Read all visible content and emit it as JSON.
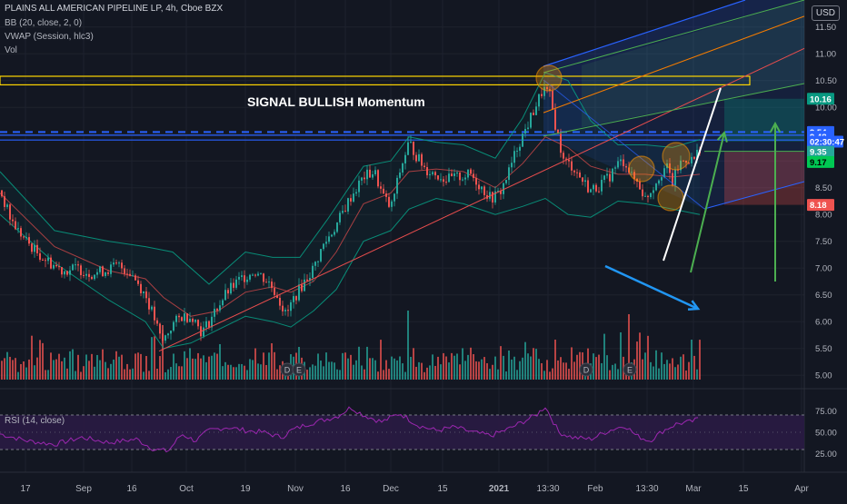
{
  "legend": {
    "title": "PLAINS ALL AMERICAN PIPELINE LP, 4h, Cboe BZX",
    "bb": "BB (20, close, 2, 0)",
    "vwap": "VWAP (Session, hlc3)",
    "vol": "Vol",
    "rsi": "RSI (14, close)"
  },
  "currency_button": "USD",
  "annotation_text": "SIGNAL BULLISH Momentum",
  "colors": {
    "background": "#131722",
    "up": "#26a69a",
    "down": "#ef5350",
    "volume_up": "#26a69a",
    "volume_down": "#ef5350",
    "bb_band": "#089981",
    "bb_basis": "#e84d4d",
    "rsi_line": "#9c27b0",
    "rsi_fill": "#2a1b44",
    "dashed_line": "#2962ff",
    "pitchfork_blue": "#2962ff",
    "pitchfork_green": "#4caf50",
    "pitchfork_orange": "#f57c00",
    "yellow_box": "#ffd600",
    "circle_fill": "#ff9800"
  },
  "price_axis": {
    "ticks": [
      "11.50",
      "11.00",
      "10.50",
      "10.00",
      "9.50",
      "9.00",
      "8.50",
      "8.00",
      "7.50",
      "7.00",
      "6.50",
      "6.00",
      "5.50",
      "5.00"
    ],
    "tags": [
      {
        "text": "10.16",
        "bg": "#089981",
        "color": "#ffffff",
        "value": 10.16
      },
      {
        "text": "9.54",
        "bg": "#2962ff",
        "color": "#ffffff",
        "value": 9.54
      },
      {
        "text": "9.48",
        "bg": "#2962ff",
        "color": "#ffffff",
        "value": 9.45
      },
      {
        "text": "02:30:47",
        "bg": "#2962ff",
        "color": "#ffffff",
        "value": 9.36
      },
      {
        "text": "9.35",
        "bg": "#26a69a",
        "color": "#ffffff",
        "value": 9.17
      },
      {
        "text": "9.17",
        "bg": "#00c853",
        "color": "#000000",
        "value": 8.98
      },
      {
        "text": "8.18",
        "bg": "#ef5350",
        "color": "#ffffff",
        "value": 8.18
      }
    ]
  },
  "rsi_axis": {
    "ticks": [
      "75.00",
      "50.00",
      "25.00"
    ]
  },
  "time_axis": {
    "labels": [
      "17",
      "Sep",
      "16",
      "Oct",
      "19",
      "Nov",
      "16",
      "Dec",
      "15",
      "2021",
      "13:30",
      "Feb",
      "13:30",
      "Mar",
      "15",
      "Apr"
    ]
  },
  "earnings_markers": [
    "D",
    "E",
    "D",
    "E"
  ],
  "chart_data": {
    "type": "candlestick",
    "title": "PLAINS ALL AMERICAN PIPELINE LP, 4h, Cboe BZX",
    "ylim": [
      4.8,
      11.8
    ],
    "rsi_ylim": [
      12,
      88
    ],
    "price_path": [
      [
        0,
        8.45
      ],
      [
        12,
        7.9
      ],
      [
        24,
        7.6
      ],
      [
        40,
        7.3
      ],
      [
        55,
        7.1
      ],
      [
        70,
        6.95
      ],
      [
        85,
        7.0
      ],
      [
        100,
        6.9
      ],
      [
        115,
        6.95
      ],
      [
        130,
        7.05
      ],
      [
        145,
        6.9
      ],
      [
        160,
        6.5
      ],
      [
        170,
        6.05
      ],
      [
        178,
        5.6
      ],
      [
        190,
        5.95
      ],
      [
        200,
        6.1
      ],
      [
        212,
        6.1
      ],
      [
        222,
        5.8
      ],
      [
        230,
        6.0
      ],
      [
        240,
        6.3
      ],
      [
        250,
        6.55
      ],
      [
        265,
        6.8
      ],
      [
        280,
        6.95
      ],
      [
        295,
        6.75
      ],
      [
        305,
        6.5
      ],
      [
        315,
        6.1
      ],
      [
        322,
        6.4
      ],
      [
        335,
        6.75
      ],
      [
        345,
        7.0
      ],
      [
        355,
        7.4
      ],
      [
        370,
        7.8
      ],
      [
        385,
        8.3
      ],
      [
        400,
        8.7
      ],
      [
        412,
        8.8
      ],
      [
        420,
        8.4
      ],
      [
        430,
        8.1
      ],
      [
        440,
        8.8
      ],
      [
        450,
        9.35
      ],
      [
        458,
        9.1
      ],
      [
        468,
        8.85
      ],
      [
        480,
        8.75
      ],
      [
        492,
        8.65
      ],
      [
        505,
        8.7
      ],
      [
        518,
        8.75
      ],
      [
        530,
        8.5
      ],
      [
        540,
        8.3
      ],
      [
        550,
        8.4
      ],
      [
        560,
        8.8
      ],
      [
        570,
        9.3
      ],
      [
        580,
        9.65
      ],
      [
        590,
        10.05
      ],
      [
        598,
        10.35
      ],
      [
        605,
        10.2
      ],
      [
        612,
        9.6
      ],
      [
        620,
        9.0
      ],
      [
        630,
        8.9
      ],
      [
        640,
        8.65
      ],
      [
        650,
        8.45
      ],
      [
        660,
        8.55
      ],
      [
        670,
        8.7
      ],
      [
        680,
        8.95
      ],
      [
        688,
        9.0
      ],
      [
        695,
        8.7
      ],
      [
        702,
        8.6
      ],
      [
        710,
        8.3
      ],
      [
        718,
        8.5
      ],
      [
        726,
        8.75
      ],
      [
        733,
        8.9
      ],
      [
        740,
        8.6
      ],
      [
        748,
        8.95
      ],
      [
        756,
        9.05
      ],
      [
        763,
        9.0
      ],
      [
        770,
        9.25
      ]
    ],
    "bb_upper": [
      [
        0,
        8.8
      ],
      [
        60,
        7.7
      ],
      [
        120,
        7.5
      ],
      [
        160,
        7.4
      ],
      [
        190,
        7.3
      ],
      [
        230,
        6.7
      ],
      [
        270,
        7.3
      ],
      [
        300,
        7.2
      ],
      [
        330,
        7.2
      ],
      [
        360,
        7.9
      ],
      [
        400,
        8.9
      ],
      [
        430,
        9.0
      ],
      [
        450,
        9.45
      ],
      [
        480,
        9.35
      ],
      [
        510,
        9.3
      ],
      [
        545,
        9.05
      ],
      [
        575,
        9.8
      ],
      [
        600,
        10.65
      ],
      [
        625,
        10.5
      ],
      [
        650,
        9.75
      ],
      [
        680,
        9.3
      ],
      [
        710,
        9.3
      ],
      [
        740,
        9.25
      ],
      [
        770,
        9.4
      ]
    ],
    "bb_lower": [
      [
        0,
        8.0
      ],
      [
        60,
        7.1
      ],
      [
        120,
        6.4
      ],
      [
        160,
        6.0
      ],
      [
        180,
        5.5
      ],
      [
        210,
        5.6
      ],
      [
        240,
        5.85
      ],
      [
        270,
        6.1
      ],
      [
        300,
        6.0
      ],
      [
        320,
        5.9
      ],
      [
        345,
        6.2
      ],
      [
        370,
        6.6
      ],
      [
        400,
        7.5
      ],
      [
        430,
        7.7
      ],
      [
        450,
        8.1
      ],
      [
        480,
        8.3
      ],
      [
        510,
        8.2
      ],
      [
        545,
        8.0
      ],
      [
        575,
        8.15
      ],
      [
        600,
        8.3
      ],
      [
        625,
        8.0
      ],
      [
        650,
        7.95
      ],
      [
        680,
        8.25
      ],
      [
        710,
        8.2
      ],
      [
        740,
        8.1
      ],
      [
        770,
        8.0
      ]
    ],
    "bb_basis": [
      [
        0,
        8.4
      ],
      [
        60,
        7.4
      ],
      [
        120,
        6.95
      ],
      [
        160,
        6.8
      ],
      [
        180,
        6.45
      ],
      [
        210,
        6.1
      ],
      [
        240,
        6.2
      ],
      [
        270,
        6.55
      ],
      [
        300,
        6.65
      ],
      [
        320,
        6.55
      ],
      [
        345,
        6.75
      ],
      [
        370,
        7.3
      ],
      [
        400,
        8.2
      ],
      [
        430,
        8.4
      ],
      [
        450,
        8.8
      ],
      [
        480,
        8.85
      ],
      [
        510,
        8.8
      ],
      [
        545,
        8.5
      ],
      [
        575,
        8.95
      ],
      [
        600,
        9.45
      ],
      [
        625,
        9.25
      ],
      [
        650,
        8.9
      ],
      [
        680,
        8.75
      ],
      [
        710,
        8.75
      ],
      [
        740,
        8.7
      ],
      [
        770,
        8.75
      ]
    ],
    "rsi_path": [
      [
        0,
        48
      ],
      [
        30,
        40
      ],
      [
        60,
        36
      ],
      [
        90,
        44
      ],
      [
        120,
        38
      ],
      [
        150,
        42
      ],
      [
        170,
        30
      ],
      [
        185,
        28
      ],
      [
        200,
        48
      ],
      [
        215,
        40
      ],
      [
        230,
        52
      ],
      [
        250,
        56
      ],
      [
        270,
        52
      ],
      [
        290,
        50
      ],
      [
        310,
        44
      ],
      [
        320,
        52
      ],
      [
        340,
        60
      ],
      [
        355,
        64
      ],
      [
        372,
        69
      ],
      [
        386,
        79
      ],
      [
        400,
        70
      ],
      [
        420,
        62
      ],
      [
        440,
        72
      ],
      [
        460,
        58
      ],
      [
        480,
        52
      ],
      [
        500,
        56
      ],
      [
        520,
        50
      ],
      [
        540,
        46
      ],
      [
        560,
        54
      ],
      [
        575,
        62
      ],
      [
        590,
        70
      ],
      [
        600,
        80
      ],
      [
        615,
        50
      ],
      [
        630,
        44
      ],
      [
        650,
        42
      ],
      [
        670,
        52
      ],
      [
        688,
        58
      ],
      [
        700,
        46
      ],
      [
        715,
        40
      ],
      [
        730,
        52
      ],
      [
        745,
        60
      ],
      [
        760,
        62
      ],
      [
        770,
        66
      ]
    ],
    "volume_highlights": [
      [
        178,
        0.75
      ],
      [
        448,
        0.95
      ],
      [
        692,
        0.9
      ],
      [
        684,
        0.65
      ],
      [
        762,
        0.55
      ],
      [
        612,
        0.55
      ],
      [
        330,
        0.45
      ],
      [
        300,
        0.5
      ],
      [
        560,
        0.4
      ]
    ]
  }
}
